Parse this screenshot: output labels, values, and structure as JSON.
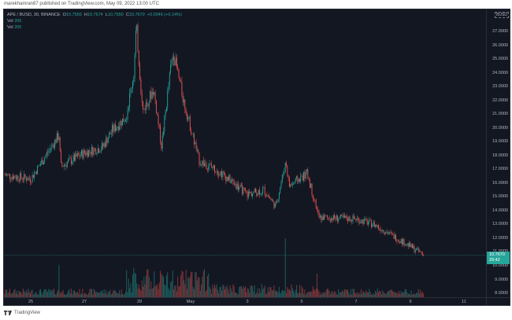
{
  "header": {
    "published_text": "marekhamran87 published on TradingView.com, May 09, 2022 13:00 UTC"
  },
  "legend": {
    "symbol": "APE / BUSD, 30, BINANCE",
    "open_label": "O",
    "open": "10.7550",
    "high_label": "H",
    "high": "10.7674",
    "low_label": "L",
    "low": "10.7550",
    "close_label": "C",
    "close": "10.7670",
    "change": "+0.0046 (+0.14%)",
    "vol_lines": [
      {
        "label": "Vol",
        "value": "205"
      },
      {
        "label": "Vol",
        "value": "205"
      }
    ]
  },
  "price_axis": {
    "currency": "BUSD",
    "ticks": [
      "27.0000",
      "26.0000",
      "25.0000",
      "24.0000",
      "23.0000",
      "22.0000",
      "21.0000",
      "20.0000",
      "19.0000",
      "18.0000",
      "17.0000",
      "16.0000",
      "15.0000",
      "14.0000",
      "13.0000",
      "12.0000",
      "11.0000",
      "10.0000",
      "9.0000",
      "8.0000"
    ],
    "last_price": "10.7670",
    "countdown": "29:42"
  },
  "time_axis": {
    "ticks": [
      "25",
      "27",
      "29",
      "May",
      "3",
      "5",
      "7",
      "9",
      "11"
    ]
  },
  "footer": {
    "brand": "TradingView"
  },
  "colors": {
    "background": "#131722",
    "up": "#26a69a",
    "down": "#ef5350",
    "grid": "#2a2e39",
    "text": "#b2b5be",
    "last_price_bg": "#26a69a"
  },
  "chart_data": {
    "type": "candlestick",
    "title": "APE / BUSD, 30, BINANCE",
    "xlabel": "",
    "ylabel": "BUSD",
    "ylim": [
      7.5,
      27.8
    ],
    "grid": false,
    "legend_position": "top-left",
    "x_ticks": [
      "25",
      "27",
      "29",
      "May",
      "3",
      "5",
      "7",
      "9",
      "11"
    ],
    "y_ticks": [
      27,
      26,
      25,
      24,
      23,
      22,
      21,
      20,
      19,
      18,
      17,
      16,
      15,
      14,
      13,
      12,
      11,
      10,
      9,
      8
    ],
    "last_price": 10.767,
    "ohlc_last": {
      "open": 10.755,
      "high": 10.7674,
      "low": 10.755,
      "close": 10.767,
      "change": 0.0046,
      "change_pct": 0.14
    },
    "approx_price_path": [
      {
        "date": "Apr 24",
        "price": 16.6
      },
      {
        "date": "Apr 25",
        "price": 16.3
      },
      {
        "date": "Apr 26",
        "price": 17.2
      },
      {
        "date": "Apr 26.5",
        "price": 19.5
      },
      {
        "date": "Apr 27",
        "price": 18.2
      },
      {
        "date": "Apr 27.5",
        "price": 18.6
      },
      {
        "date": "Apr 28",
        "price": 19.8
      },
      {
        "date": "Apr 28.5",
        "price": 20.8
      },
      {
        "date": "Apr 29",
        "price": 24.0
      },
      {
        "date": "Apr 29 peak",
        "price": 27.5
      },
      {
        "date": "Apr 29.5",
        "price": 21.2
      },
      {
        "date": "Apr 30",
        "price": 22.8
      },
      {
        "date": "Apr 30.5",
        "price": 18.7
      },
      {
        "date": "May 1",
        "price": 24.5
      },
      {
        "date": "May 1 high",
        "price": 25.5
      },
      {
        "date": "May 1.5",
        "price": 22.0
      },
      {
        "date": "May 2",
        "price": 17.6
      },
      {
        "date": "May 2.5",
        "price": 17.0
      },
      {
        "date": "May 3",
        "price": 15.2
      },
      {
        "date": "May 3.5",
        "price": 15.5
      },
      {
        "date": "May 4",
        "price": 14.3
      },
      {
        "date": "May 4.5 spike",
        "price": 17.6
      },
      {
        "date": "May 5",
        "price": 15.8
      },
      {
        "date": "May 5.5",
        "price": 16.7
      },
      {
        "date": "May 6",
        "price": 13.5
      },
      {
        "date": "May 7",
        "price": 13.4
      },
      {
        "date": "May 7.5",
        "price": 13.0
      },
      {
        "date": "May 8",
        "price": 12.3
      },
      {
        "date": "May 9",
        "price": 11.4
      },
      {
        "date": "May 9.5",
        "price": 10.77
      }
    ],
    "volume": {
      "notable_spikes": [
        {
          "date": "Apr 26",
          "relative": 0.55
        },
        {
          "date": "Apr 29",
          "relative": 0.5
        },
        {
          "date": "May 4.5",
          "relative": 1.0
        },
        {
          "date": "May 6",
          "relative": 0.4
        }
      ]
    }
  }
}
